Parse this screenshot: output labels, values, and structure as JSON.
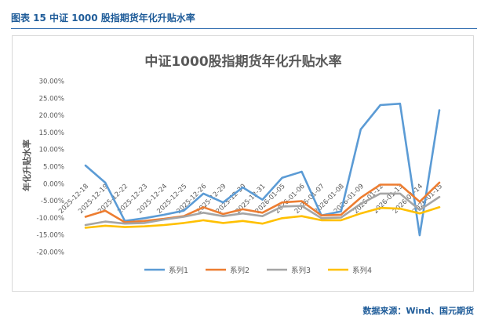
{
  "figure": {
    "caption": "图表 15  中证 1000 股指期货年化升贴水率",
    "source": "数据来源：Wind、国元期货"
  },
  "chart_data": {
    "type": "line",
    "title": "中证1000股指期货年化升贴水率",
    "xlabel": "",
    "ylabel": "年化升贴水率",
    "ylim": [
      -20,
      30
    ],
    "yticks": [
      -20,
      -15,
      -10,
      -5,
      0,
      5,
      10,
      15,
      20,
      25,
      30
    ],
    "ytick_labels": [
      "-20.00%",
      "-15.00%",
      "-10.00%",
      "-5.00%",
      "0.00%",
      "5.00%",
      "10.00%",
      "15.00%",
      "20.00%",
      "25.00%",
      "30.00%"
    ],
    "categories": [
      "2025-12-18",
      "2025-12-19",
      "2025-12-22",
      "2025-12-23",
      "2025-12-24",
      "2025-12-25",
      "2025-12-26",
      "2025-12-29",
      "2025-12-30",
      "2025-12-31",
      "2026-01-05",
      "2026-01-06",
      "2026-01-07",
      "2026-01-08",
      "2026-01-09",
      "2026-01-12",
      "2026-01-13",
      "2026-01-14",
      "2026-01-15"
    ],
    "grid": false,
    "legend": "bottom",
    "series": [
      {
        "name": "系列1",
        "color": "#5b9bd5",
        "values": [
          5.2,
          0.2,
          -11.0,
          -10.2,
          -9.2,
          -8.0,
          -3.0,
          -5.6,
          -1.2,
          -4.8,
          1.6,
          3.4,
          -9.4,
          -8.2,
          15.8,
          22.9,
          23.3,
          -15.2,
          21.4
        ]
      },
      {
        "name": "系列2",
        "color": "#ed7d31",
        "values": [
          -9.8,
          -8.0,
          -11.4,
          -11.0,
          -10.4,
          -9.6,
          -7.0,
          -9.0,
          -7.6,
          -8.6,
          -5.6,
          -5.2,
          -9.4,
          -9.2,
          -4.2,
          -0.4,
          -0.4,
          -5.4,
          0.2
        ]
      },
      {
        "name": "系列3",
        "color": "#a5a5a5",
        "values": [
          -12.2,
          -11.2,
          -11.8,
          -11.6,
          -10.6,
          -9.8,
          -8.6,
          -9.6,
          -8.8,
          -9.6,
          -6.8,
          -6.6,
          -10.2,
          -10.0,
          -6.0,
          -3.0,
          -3.0,
          -7.8,
          -4.0
        ]
      },
      {
        "name": "系列4",
        "color": "#ffc000",
        "values": [
          -13.0,
          -12.4,
          -12.8,
          -12.6,
          -12.2,
          -11.6,
          -10.8,
          -11.6,
          -11.0,
          -11.8,
          -10.2,
          -9.6,
          -10.8,
          -10.8,
          -8.8,
          -7.2,
          -7.4,
          -8.8,
          -7.0
        ]
      }
    ]
  }
}
